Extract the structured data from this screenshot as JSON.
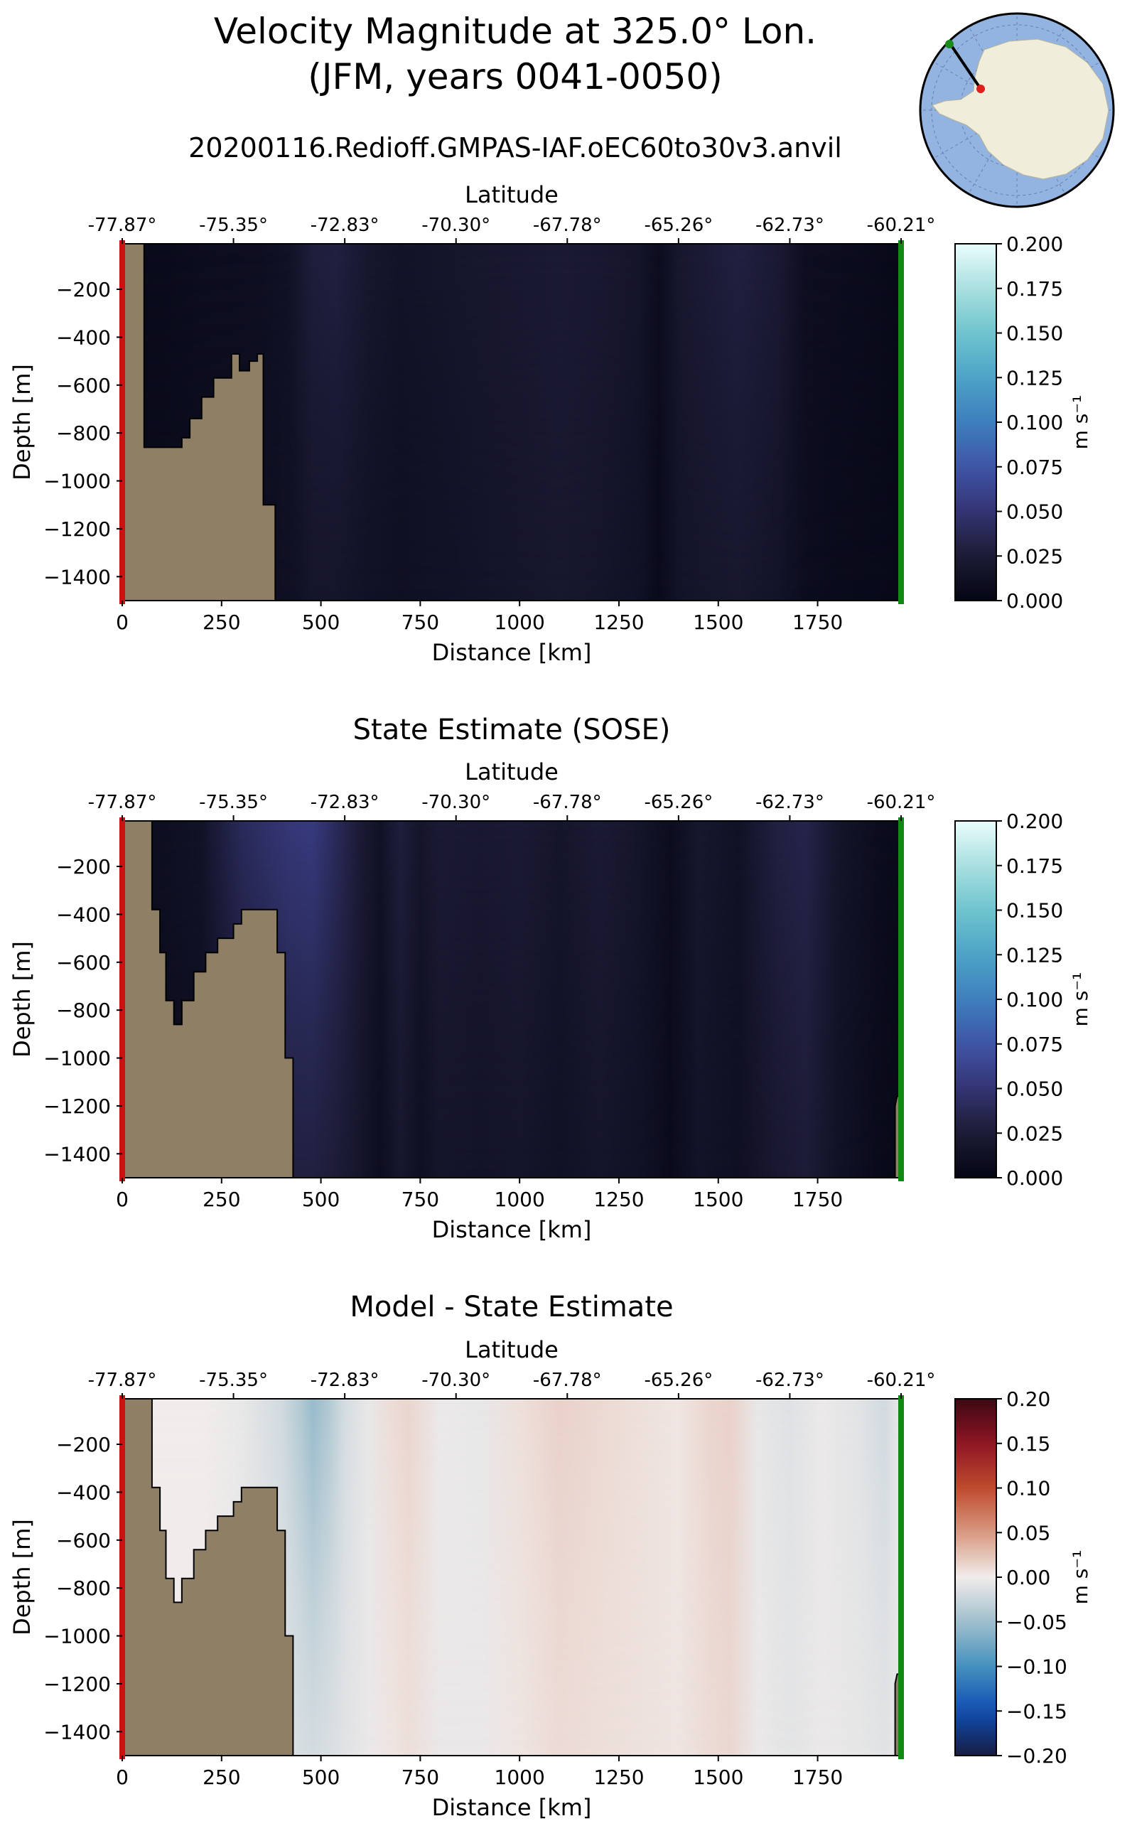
{
  "header": {
    "title_line1": "Velocity Magnitude at 325.0° Lon.",
    "title_line2": "(JFM, years 0041-0050)",
    "run_name": "20200116.Redioff.GMPAS-IAF.oEC60to30v3.anvil"
  },
  "colors": {
    "land": "#8f7f65",
    "section_start_marker": "#cc1111",
    "section_end_marker": "#118811",
    "map_ocean": "#93b3e0",
    "map_land": "#f0eedb"
  },
  "inset_map": {
    "description_icon": "antarctica-polar-map-icon",
    "start_point_color": "#e0201c",
    "end_point_color": "#1a8a1a"
  },
  "chart_data": [
    {
      "type": "heatmap",
      "title": "",
      "xlabel": "Distance [km]",
      "ylabel": "Depth [m]",
      "top_xlabel": "Latitude",
      "xlim": [
        0,
        1960
      ],
      "ylim": [
        -1500,
        -10
      ],
      "xticks": [
        "0",
        "250",
        "500",
        "750",
        "1000",
        "1250",
        "1500",
        "1750"
      ],
      "yticks": [
        "−200",
        "−400",
        "−600",
        "−800",
        "−1000",
        "−1200",
        "−1400"
      ],
      "top_ticks": [
        "-77.87°",
        "-75.35°",
        "-72.83°",
        "-70.30°",
        "-67.78°",
        "-65.26°",
        "-62.73°",
        "-60.21°"
      ],
      "colorbar": {
        "label": "m s⁻¹",
        "min": 0.0,
        "max": 0.2,
        "ticks": [
          "0.000",
          "0.025",
          "0.050",
          "0.075",
          "0.100",
          "0.125",
          "0.150",
          "0.175",
          "0.200"
        ],
        "colormap": "ice"
      },
      "bathymetry": [
        [
          0,
          -1500
        ],
        [
          0,
          -10
        ],
        [
          55,
          -10
        ],
        [
          55,
          -860
        ],
        [
          150,
          -860
        ],
        [
          150,
          -820
        ],
        [
          170,
          -820
        ],
        [
          170,
          -740
        ],
        [
          200,
          -740
        ],
        [
          200,
          -650
        ],
        [
          230,
          -650
        ],
        [
          230,
          -570
        ],
        [
          275,
          -570
        ],
        [
          275,
          -470
        ],
        [
          295,
          -470
        ],
        [
          295,
          -540
        ],
        [
          320,
          -540
        ],
        [
          320,
          -500
        ],
        [
          340,
          -500
        ],
        [
          340,
          -470
        ],
        [
          355,
          -470
        ],
        [
          355,
          -1100
        ],
        [
          385,
          -1100
        ],
        [
          385,
          -1500
        ]
      ],
      "velocity_profile": {
        "distance_km": [
          0,
          100,
          200,
          350,
          420,
          480,
          540,
          620,
          700,
          800,
          900,
          1000,
          1100,
          1200,
          1300,
          1350,
          1400,
          1450,
          1550,
          1650,
          1720,
          1800,
          1900,
          1960
        ],
        "surface": [
          0.005,
          0.006,
          0.008,
          0.01,
          0.014,
          0.028,
          0.03,
          0.02,
          0.016,
          0.018,
          0.02,
          0.022,
          0.024,
          0.022,
          0.018,
          0.008,
          0.02,
          0.024,
          0.03,
          0.024,
          0.01,
          0.008,
          0.006,
          0.004
        ],
        "bottom": [
          0.005,
          0.006,
          0.008,
          0.01,
          0.012,
          0.018,
          0.018,
          0.014,
          0.012,
          0.014,
          0.016,
          0.018,
          0.02,
          0.018,
          0.014,
          0.006,
          0.016,
          0.018,
          0.02,
          0.016,
          0.008,
          0.006,
          0.005,
          0.004
        ]
      }
    },
    {
      "type": "heatmap",
      "title": "State Estimate (SOSE)",
      "xlabel": "Distance [km]",
      "ylabel": "Depth [m]",
      "top_xlabel": "Latitude",
      "xlim": [
        0,
        1960
      ],
      "ylim": [
        -1500,
        -10
      ],
      "xticks": [
        "0",
        "250",
        "500",
        "750",
        "1000",
        "1250",
        "1500",
        "1750"
      ],
      "yticks": [
        "−200",
        "−400",
        "−600",
        "−800",
        "−1000",
        "−1200",
        "−1400"
      ],
      "top_ticks": [
        "-77.87°",
        "-75.35°",
        "-72.83°",
        "-70.30°",
        "-67.78°",
        "-65.26°",
        "-62.73°",
        "-60.21°"
      ],
      "colorbar": {
        "label": "m s⁻¹",
        "min": 0.0,
        "max": 0.2,
        "ticks": [
          "0.000",
          "0.025",
          "0.050",
          "0.075",
          "0.100",
          "0.125",
          "0.150",
          "0.175",
          "0.200"
        ],
        "colormap": "ice"
      },
      "bathymetry": [
        [
          0,
          -1500
        ],
        [
          0,
          -10
        ],
        [
          75,
          -10
        ],
        [
          75,
          -380
        ],
        [
          95,
          -380
        ],
        [
          95,
          -560
        ],
        [
          110,
          -560
        ],
        [
          110,
          -760
        ],
        [
          130,
          -760
        ],
        [
          130,
          -860
        ],
        [
          150,
          -860
        ],
        [
          150,
          -760
        ],
        [
          180,
          -760
        ],
        [
          180,
          -640
        ],
        [
          210,
          -640
        ],
        [
          210,
          -560
        ],
        [
          240,
          -560
        ],
        [
          240,
          -500
        ],
        [
          280,
          -500
        ],
        [
          280,
          -440
        ],
        [
          300,
          -440
        ],
        [
          300,
          -380
        ],
        [
          390,
          -380
        ],
        [
          390,
          -560
        ],
        [
          410,
          -560
        ],
        [
          410,
          -1000
        ],
        [
          430,
          -1000
        ],
        [
          430,
          -1500
        ]
      ],
      "bathymetry_right": [
        [
          1960,
          -1500
        ],
        [
          1960,
          -1160
        ],
        [
          1950,
          -1160
        ],
        [
          1945,
          -1200
        ],
        [
          1945,
          -1500
        ]
      ],
      "velocity_profile": {
        "distance_km": [
          0,
          100,
          200,
          300,
          420,
          480,
          540,
          600,
          650,
          700,
          750,
          800,
          900,
          1000,
          1100,
          1200,
          1300,
          1380,
          1450,
          1550,
          1650,
          1720,
          1800,
          1900,
          1960
        ],
        "surface": [
          0.008,
          0.01,
          0.015,
          0.04,
          0.052,
          0.055,
          0.04,
          0.024,
          0.014,
          0.028,
          0.018,
          0.024,
          0.022,
          0.024,
          0.018,
          0.024,
          0.018,
          0.008,
          0.02,
          0.014,
          0.03,
          0.034,
          0.018,
          0.008,
          0.005
        ],
        "bottom": [
          0.006,
          0.008,
          0.01,
          0.02,
          0.03,
          0.03,
          0.026,
          0.018,
          0.01,
          0.02,
          0.012,
          0.018,
          0.016,
          0.018,
          0.014,
          0.018,
          0.014,
          0.006,
          0.016,
          0.012,
          0.022,
          0.026,
          0.014,
          0.006,
          0.004
        ]
      }
    },
    {
      "type": "heatmap",
      "title": "Model - State Estimate",
      "xlabel": "Distance [km]",
      "ylabel": "Depth [m]",
      "top_xlabel": "Latitude",
      "xlim": [
        0,
        1960
      ],
      "ylim": [
        -1500,
        -10
      ],
      "xticks": [
        "0",
        "250",
        "500",
        "750",
        "1000",
        "1250",
        "1500",
        "1750"
      ],
      "yticks": [
        "−200",
        "−400",
        "−600",
        "−800",
        "−1000",
        "−1200",
        "−1400"
      ],
      "top_ticks": [
        "-77.87°",
        "-75.35°",
        "-72.83°",
        "-70.30°",
        "-67.78°",
        "-65.26°",
        "-62.73°",
        "-60.21°"
      ],
      "colorbar": {
        "label": "m s⁻¹",
        "min": -0.2,
        "max": 0.2,
        "ticks": [
          "−0.20",
          "−0.15",
          "−0.10",
          "−0.05",
          "0.00",
          "0.05",
          "0.10",
          "0.15",
          "0.20"
        ],
        "colormap": "balance"
      },
      "bathymetry": [
        [
          0,
          -1500
        ],
        [
          0,
          -10
        ],
        [
          75,
          -10
        ],
        [
          75,
          -380
        ],
        [
          95,
          -380
        ],
        [
          95,
          -560
        ],
        [
          110,
          -560
        ],
        [
          110,
          -760
        ],
        [
          130,
          -760
        ],
        [
          130,
          -860
        ],
        [
          150,
          -860
        ],
        [
          150,
          -760
        ],
        [
          180,
          -760
        ],
        [
          180,
          -640
        ],
        [
          210,
          -640
        ],
        [
          210,
          -560
        ],
        [
          240,
          -560
        ],
        [
          240,
          -500
        ],
        [
          280,
          -500
        ],
        [
          280,
          -440
        ],
        [
          300,
          -440
        ],
        [
          300,
          -380
        ],
        [
          390,
          -380
        ],
        [
          390,
          -560
        ],
        [
          410,
          -560
        ],
        [
          410,
          -1000
        ],
        [
          430,
          -1000
        ],
        [
          430,
          -1500
        ]
      ],
      "bathymetry_right": [
        [
          1960,
          -1500
        ],
        [
          1960,
          -1160
        ],
        [
          1950,
          -1160
        ],
        [
          1945,
          -1200
        ],
        [
          1945,
          -1500
        ]
      ],
      "difference_profile": {
        "distance_km": [
          0,
          100,
          200,
          300,
          400,
          450,
          480,
          520,
          560,
          620,
          680,
          720,
          800,
          900,
          1000,
          1100,
          1200,
          1300,
          1400,
          1480,
          1530,
          1600,
          1680,
          1760,
          1850,
          1920,
          1960
        ],
        "surface": [
          0.0,
          0.0,
          0.0,
          -0.006,
          -0.02,
          -0.04,
          -0.055,
          -0.04,
          -0.018,
          -0.006,
          0.01,
          0.014,
          -0.004,
          -0.006,
          0.008,
          0.016,
          0.012,
          0.008,
          0.004,
          0.014,
          0.016,
          -0.006,
          -0.012,
          -0.004,
          -0.01,
          -0.02,
          -0.004
        ],
        "bottom": [
          0.0,
          0.0,
          0.0,
          -0.004,
          -0.01,
          -0.016,
          -0.018,
          -0.014,
          -0.01,
          -0.004,
          0.004,
          0.008,
          -0.004,
          -0.004,
          0.004,
          0.01,
          0.008,
          0.006,
          0.004,
          0.01,
          0.012,
          -0.004,
          -0.008,
          -0.004,
          -0.006,
          -0.01,
          -0.004
        ]
      }
    }
  ]
}
